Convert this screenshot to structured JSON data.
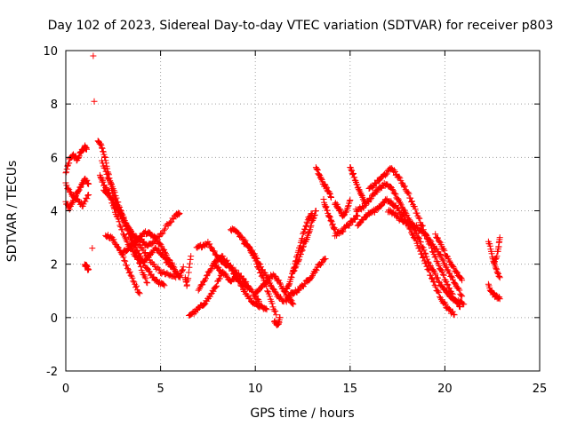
{
  "chart_data": {
    "type": "scatter",
    "title": "Day 102 of 2023, Sidereal Day-to-day VTEC variation (SDTVAR) for receiver p803",
    "xlabel": "GPS time / hours",
    "ylabel": "SDTVAR / TECUs",
    "xlim": [
      0,
      25
    ],
    "ylim": [
      -2,
      10
    ],
    "xticks": [
      "0",
      "5",
      "10",
      "15",
      "20",
      "25"
    ],
    "yticks": [
      "-2",
      "0",
      "2",
      "4",
      "6",
      "8",
      "10"
    ],
    "grid": true,
    "marker": "+",
    "color": "#ff0000",
    "series": [
      {
        "name": "s1",
        "x": [
          0.0,
          0.2,
          0.4,
          0.6,
          0.8,
          1.0,
          1.1
        ],
        "y": [
          5.4,
          5.9,
          6.1,
          5.9,
          6.2,
          6.4,
          6.3
        ]
      },
      {
        "name": "s2",
        "x": [
          0.0,
          0.2,
          0.4,
          0.6,
          0.8,
          1.0,
          1.2
        ],
        "y": [
          4.3,
          4.1,
          4.4,
          4.7,
          4.9,
          5.2,
          5.0
        ]
      },
      {
        "name": "s3",
        "x": [
          0.0,
          0.3,
          0.6,
          0.9,
          1.2
        ],
        "y": [
          5.0,
          4.6,
          4.4,
          4.2,
          4.6
        ]
      },
      {
        "name": "s4",
        "x": [
          1.0,
          1.1,
          1.2
        ],
        "y": [
          2.0,
          1.9,
          1.8
        ]
      },
      {
        "name": "s5",
        "x": [
          1.4
        ],
        "y": [
          2.6
        ]
      },
      {
        "name": "s6",
        "x": [
          1.45
        ],
        "y": [
          9.8
        ]
      },
      {
        "name": "s7",
        "x": [
          1.5
        ],
        "y": [
          8.1
        ]
      },
      {
        "name": "s8",
        "x": [
          1.7,
          1.9,
          2.1,
          2.3,
          2.5,
          2.8,
          3.1,
          3.4,
          3.7,
          4.0,
          4.3,
          4.6,
          5.0,
          5.4,
          5.8,
          6.0
        ],
        "y": [
          6.6,
          6.4,
          5.9,
          5.2,
          4.6,
          4.1,
          3.6,
          3.2,
          3.0,
          2.9,
          2.7,
          2.8,
          3.1,
          3.5,
          3.8,
          3.9
        ]
      },
      {
        "name": "s9",
        "x": [
          1.8,
          2.0,
          2.3,
          2.6,
          3.0,
          3.4,
          3.8,
          4.2,
          4.6,
          5.0,
          5.4,
          5.8
        ],
        "y": [
          5.3,
          5.0,
          4.6,
          4.2,
          3.8,
          3.3,
          2.8,
          2.4,
          2.0,
          1.7,
          1.6,
          1.5
        ]
      },
      {
        "name": "s10",
        "x": [
          1.9,
          2.2,
          2.5,
          2.8,
          3.1,
          3.4,
          3.7,
          4.0,
          4.3
        ],
        "y": [
          5.9,
          5.3,
          4.8,
          4.2,
          3.6,
          3.0,
          2.4,
          1.8,
          1.3
        ]
      },
      {
        "name": "s11",
        "x": [
          2.0,
          2.3,
          2.6,
          2.9,
          3.2,
          3.5,
          3.8,
          4.1,
          4.4,
          4.7,
          5.0,
          5.3,
          5.6
        ],
        "y": [
          4.8,
          4.6,
          4.0,
          3.4,
          2.9,
          2.5,
          2.2,
          2.1,
          2.3,
          2.6,
          2.4,
          2.1,
          1.9
        ]
      },
      {
        "name": "s12",
        "x": [
          2.1,
          2.4,
          2.7,
          3.0,
          3.3,
          3.6,
          3.9
        ],
        "y": [
          3.1,
          3.0,
          2.7,
          2.3,
          1.8,
          1.3,
          0.9
        ]
      },
      {
        "name": "s13",
        "x": [
          2.5,
          2.8,
          3.1,
          3.4,
          3.7,
          4.0,
          4.3,
          4.6,
          4.9,
          5.2
        ],
        "y": [
          4.2,
          4.0,
          3.6,
          3.1,
          2.6,
          2.2,
          1.8,
          1.5,
          1.3,
          1.2
        ]
      },
      {
        "name": "s14",
        "x": [
          3.0,
          3.3,
          3.6,
          3.9,
          4.2,
          4.5,
          4.8,
          5.1,
          5.4,
          5.7
        ],
        "y": [
          2.4,
          2.6,
          2.8,
          3.0,
          3.2,
          3.1,
          2.9,
          2.6,
          2.2,
          1.8
        ]
      },
      {
        "name": "s15",
        "x": [
          5.6,
          5.8,
          6.0,
          6.2
        ],
        "y": [
          2.0,
          1.7,
          1.5,
          1.9
        ]
      },
      {
        "name": "s16",
        "x": [
          6.3,
          6.4,
          6.6
        ],
        "y": [
          1.5,
          1.2,
          2.3
        ]
      },
      {
        "name": "s17",
        "x": [
          6.5,
          6.8,
          7.1,
          7.4,
          7.7,
          8.0,
          8.3
        ],
        "y": [
          0.1,
          0.2,
          0.4,
          0.6,
          0.9,
          1.3,
          1.7
        ]
      },
      {
        "name": "s18",
        "x": [
          6.9,
          7.2,
          7.5,
          7.8,
          8.1,
          8.4,
          8.7,
          9.0,
          9.3,
          9.6,
          9.9,
          10.2
        ],
        "y": [
          2.6,
          2.7,
          2.8,
          2.5,
          2.2,
          2.0,
          1.9,
          1.7,
          1.5,
          1.2,
          0.9,
          0.6
        ]
      },
      {
        "name": "s19",
        "x": [
          7.0,
          7.3,
          7.6,
          7.9,
          8.2,
          8.5,
          8.8,
          9.1,
          9.4,
          9.7,
          10.0,
          10.3,
          10.6
        ],
        "y": [
          1.0,
          1.4,
          1.8,
          2.1,
          2.3,
          2.1,
          1.7,
          1.4,
          1.0,
          0.7,
          0.5,
          0.4,
          0.3
        ]
      },
      {
        "name": "s20",
        "x": [
          7.8,
          8.1,
          8.4,
          8.7,
          9.0,
          9.3,
          9.6
        ],
        "y": [
          2.0,
          1.8,
          1.6,
          1.4,
          1.5,
          1.3,
          1.1
        ]
      },
      {
        "name": "s21",
        "x": [
          8.7,
          9.0,
          9.3,
          9.6,
          9.9,
          10.2,
          10.5,
          10.8,
          11.1
        ],
        "y": [
          3.3,
          3.2,
          3.0,
          2.7,
          2.3,
          1.8,
          1.3,
          0.7,
          0.1
        ]
      },
      {
        "name": "s22",
        "x": [
          9.4,
          9.7,
          10.0,
          10.3,
          10.6,
          10.9,
          11.2,
          11.5
        ],
        "y": [
          2.8,
          2.6,
          2.3,
          1.9,
          1.5,
          1.1,
          0.8,
          0.6
        ]
      },
      {
        "name": "s23",
        "x": [
          10.0,
          10.3,
          10.6,
          10.9,
          11.2,
          11.5,
          11.8,
          12.0
        ],
        "y": [
          0.9,
          1.1,
          1.4,
          1.6,
          1.4,
          1.0,
          0.7,
          0.5
        ]
      },
      {
        "name": "s24",
        "x": [
          11.0,
          11.2,
          11.3
        ],
        "y": [
          -0.1,
          -0.3,
          0.0
        ]
      },
      {
        "name": "s25",
        "x": [
          11.6,
          11.8,
          12.0,
          12.2,
          12.4,
          12.6,
          12.8,
          13.0,
          13.2
        ],
        "y": [
          1.0,
          1.3,
          1.7,
          2.0,
          2.4,
          2.8,
          3.1,
          3.6,
          4.0
        ]
      },
      {
        "name": "s26",
        "x": [
          11.6,
          11.9,
          12.2,
          12.5,
          12.8,
          13.1,
          13.4,
          13.7
        ],
        "y": [
          0.6,
          0.9,
          1.0,
          1.2,
          1.4,
          1.7,
          2.0,
          2.2
        ]
      },
      {
        "name": "s27",
        "x": [
          12.0,
          12.2,
          12.4,
          12.6,
          12.8,
          13.0
        ],
        "y": [
          1.8,
          2.3,
          2.8,
          3.3,
          3.7,
          3.9
        ]
      },
      {
        "name": "s28",
        "x": [
          13.2,
          13.4,
          13.6,
          13.8,
          14.0
        ],
        "y": [
          5.6,
          5.3,
          5.0,
          4.8,
          4.5
        ]
      },
      {
        "name": "s29",
        "x": [
          13.6,
          13.8,
          14.0,
          14.2
        ],
        "y": [
          4.4,
          4.0,
          3.6,
          3.3
        ]
      },
      {
        "name": "s30",
        "x": [
          14.2,
          14.4,
          14.6,
          14.8,
          15.0
        ],
        "y": [
          4.3,
          4.1,
          3.8,
          4.0,
          4.4
        ]
      },
      {
        "name": "s31",
        "x": [
          14.2,
          14.5,
          14.8,
          15.1,
          15.4
        ],
        "y": [
          3.1,
          3.2,
          3.4,
          3.6,
          3.8
        ]
      },
      {
        "name": "s32",
        "x": [
          15.0,
          15.2,
          15.4,
          15.6,
          15.8
        ],
        "y": [
          5.6,
          5.3,
          4.9,
          4.6,
          4.3
        ]
      },
      {
        "name": "s33",
        "x": [
          15.3,
          15.6,
          15.9,
          16.2,
          16.5,
          16.8,
          17.1,
          17.4,
          17.7,
          18.0,
          18.3,
          18.6,
          18.9,
          19.2,
          19.5,
          19.8,
          20.1,
          20.4,
          20.7,
          21.0
        ],
        "y": [
          4.0,
          4.1,
          4.3,
          4.6,
          4.8,
          5.0,
          4.9,
          4.6,
          4.2,
          3.8,
          3.4,
          3.0,
          2.5,
          2.0,
          1.6,
          1.2,
          0.9,
          0.7,
          0.6,
          0.5
        ]
      },
      {
        "name": "s34",
        "x": [
          15.4,
          15.7,
          16.0,
          16.3,
          16.6,
          16.9,
          17.2,
          17.5,
          17.8,
          18.1,
          18.4,
          18.7,
          19.0,
          19.3,
          19.6,
          19.9,
          20.2,
          20.5
        ],
        "y": [
          3.5,
          3.7,
          3.9,
          4.0,
          4.2,
          4.4,
          4.3,
          4.1,
          3.8,
          3.4,
          3.0,
          2.5,
          2.0,
          1.5,
          1.0,
          0.6,
          0.3,
          0.1
        ]
      },
      {
        "name": "s35",
        "x": [
          16.0,
          16.3,
          16.6,
          16.9,
          17.2,
          17.5,
          17.8,
          18.1,
          18.4,
          18.7,
          19.0,
          19.3,
          19.6,
          19.9,
          20.2,
          20.5,
          20.8
        ],
        "y": [
          4.8,
          5.0,
          5.2,
          5.4,
          5.6,
          5.3,
          5.0,
          4.6,
          4.1,
          3.6,
          3.1,
          2.6,
          2.1,
          1.6,
          1.1,
          0.7,
          0.4
        ]
      },
      {
        "name": "s36",
        "x": [
          17.0,
          17.3,
          17.6,
          17.9,
          18.2,
          18.5,
          18.8,
          19.1,
          19.4,
          19.7,
          20.0,
          20.3,
          20.6,
          20.9
        ],
        "y": [
          4.0,
          3.9,
          3.7,
          3.6,
          3.5,
          3.4,
          3.2,
          3.0,
          2.7,
          2.4,
          2.0,
          1.6,
          1.2,
          0.8
        ]
      },
      {
        "name": "s37",
        "x": [
          19.5,
          19.8,
          20.1,
          20.4,
          20.7,
          20.9
        ],
        "y": [
          3.1,
          2.7,
          2.3,
          1.9,
          1.6,
          1.4
        ]
      },
      {
        "name": "s38",
        "x": [
          22.3,
          22.5,
          22.7,
          22.9
        ],
        "y": [
          2.9,
          2.3,
          1.8,
          1.5
        ]
      },
      {
        "name": "s39",
        "x": [
          22.3,
          22.5,
          22.7,
          22.9
        ],
        "y": [
          1.2,
          0.9,
          0.8,
          0.7
        ]
      },
      {
        "name": "s40",
        "x": [
          22.6,
          22.8,
          22.9
        ],
        "y": [
          2.0,
          2.5,
          3.0
        ]
      }
    ]
  }
}
